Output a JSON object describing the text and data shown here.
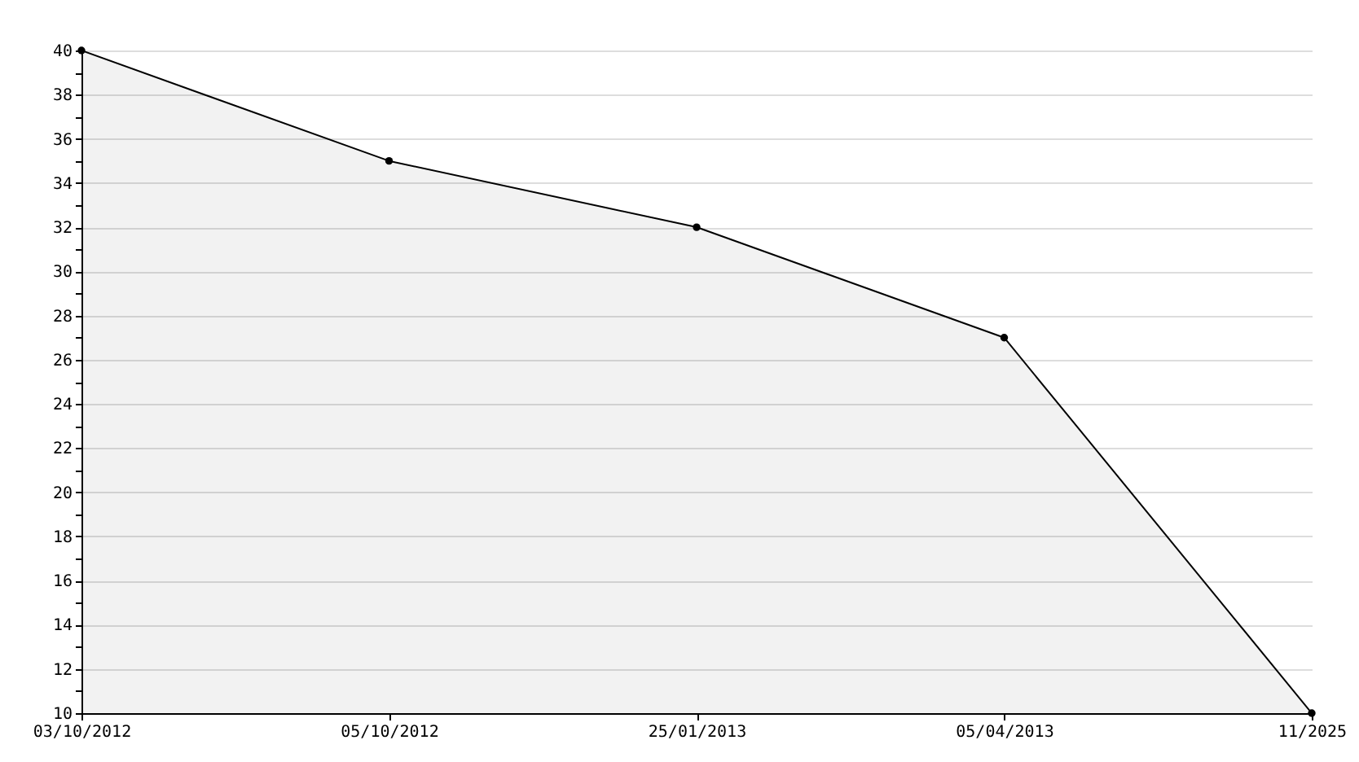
{
  "chart_data": {
    "type": "area",
    "categories": [
      "03/10/2012",
      "05/10/2012",
      "25/01/2013",
      "05/04/2013",
      "11/2025"
    ],
    "series": [
      {
        "color": "#000000",
        "values": [
          40,
          35,
          32,
          27,
          10
        ]
      }
    ],
    "marker": "circle",
    "grid": "y",
    "ylim": [
      10,
      40
    ],
    "yticks": [
      10,
      {
        "value": 11,
        "label": null
      },
      12,
      {
        "value": 13,
        "label": null
      },
      14,
      {
        "value": 15,
        "label": null
      },
      16,
      {
        "value": 17,
        "label": null
      },
      18,
      {
        "value": 19,
        "label": null
      },
      20,
      {
        "value": 21,
        "label": null
      },
      22,
      {
        "value": 23,
        "label": null
      },
      24,
      {
        "value": 25,
        "label": null
      },
      26,
      {
        "value": 27,
        "label": null
      },
      28,
      {
        "value": 29,
        "label": null
      },
      30,
      {
        "value": 31,
        "label": null
      },
      32,
      {
        "value": 33,
        "label": null
      },
      34,
      {
        "value": 35,
        "label": null
      },
      36,
      {
        "value": 37,
        "label": null
      },
      38,
      {
        "value": 39,
        "label": null
      },
      40
    ]
  }
}
